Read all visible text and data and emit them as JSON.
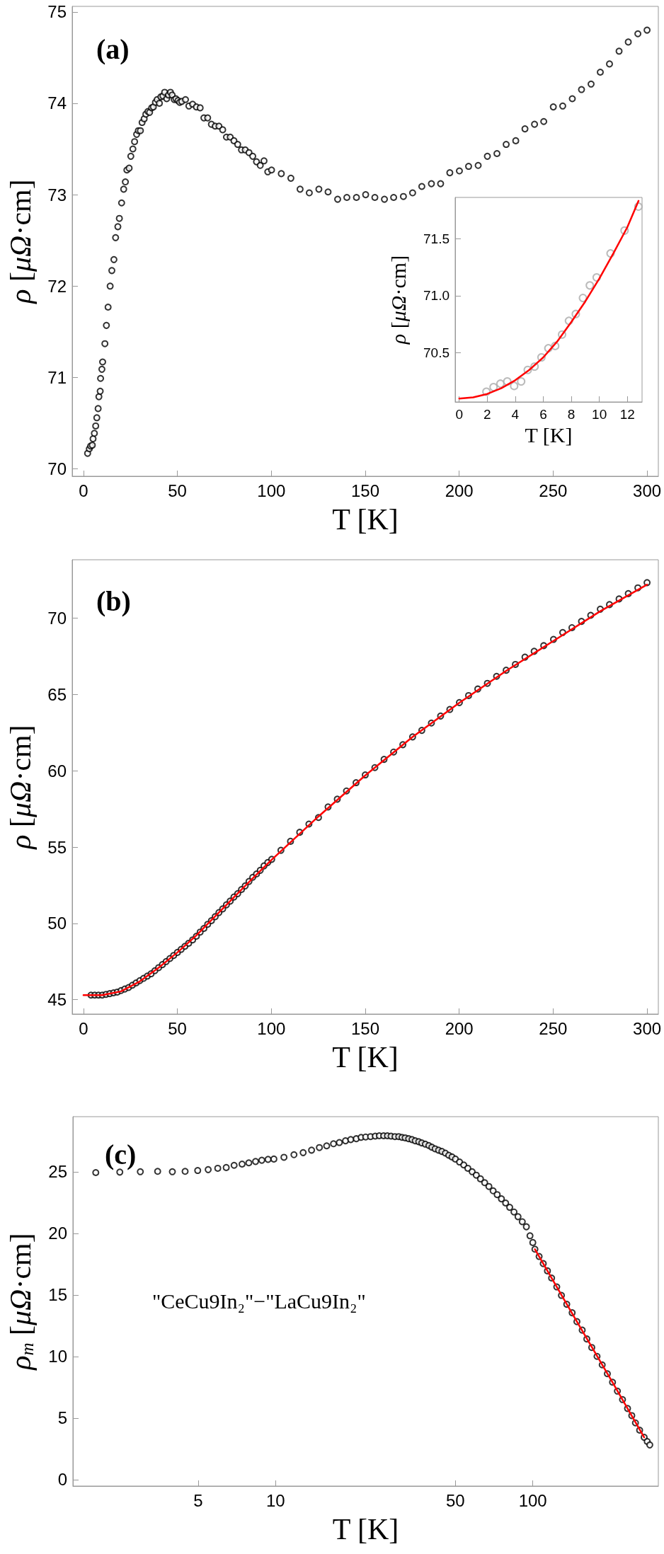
{
  "chart_data": [
    {
      "type": "scatter",
      "title": "(a)",
      "xlabel": "T [K]",
      "ylabel": "ρ [μΩ·cm]",
      "marker": "circle",
      "xlim": [
        -6,
        306
      ],
      "ylim": [
        69.92,
        75.06
      ],
      "xticks": [
        0,
        50,
        100,
        150,
        200,
        250,
        300
      ],
      "yticks": [
        70,
        71,
        72,
        73,
        74,
        75
      ],
      "series": [
        {
          "color": "#000000",
          "x": [
            2.2,
            3.1,
            3.8,
            4.7,
            5.1,
            5.8,
            6.5,
            7.1,
            7.8,
            8.2,
            8.9,
            9.1,
            9.8,
            10.2,
            11.4,
            12.2,
            13.1,
            14.2,
            15.1,
            16.2,
            17.1,
            18.3,
            19.1,
            20.3,
            21.4,
            22.3,
            23.1,
            24.3,
            25.2,
            26.3,
            27.2,
            28.3,
            29.2,
            30.3,
            31.2,
            32.3,
            33.2,
            34.3,
            35.2,
            36.3,
            37.2,
            38.3,
            39.2,
            40.4,
            41.2,
            42.3,
            43.2,
            44.3,
            45.2,
            46.3,
            47.2,
            48.3,
            49.2,
            50.3,
            51.2,
            52.3,
            54.3,
            56.1,
            58.1,
            60.1,
            62.1,
            64.1,
            66.1,
            68.1,
            70.1,
            72.1,
            74.1,
            76.1,
            78.1,
            80.1,
            82.1,
            84.1,
            86.1,
            88.1,
            90.1,
            92.1,
            94.1,
            96.1,
            98.1,
            100.1,
            105.3,
            110.4,
            115.3,
            120.2,
            125.3,
            130.2,
            135.3,
            140.2,
            145.3,
            150.2,
            155.1,
            160.2,
            165.1,
            170.3,
            175.2,
            180.1,
            185.2,
            190.1,
            195.0,
            200.1,
            205.0,
            210.1,
            215.0,
            220.1,
            225.0,
            230.1,
            235.0,
            240.1,
            245.0,
            250.1,
            255.1,
            260.2,
            265.1,
            270.2,
            275.1,
            280.0,
            285.1,
            290.0,
            295.1,
            300.0
          ],
          "values": [
            70.17,
            70.22,
            70.25,
            70.26,
            70.33,
            70.39,
            70.47,
            70.56,
            70.66,
            70.79,
            70.85,
            70.99,
            71.09,
            71.17,
            71.37,
            71.57,
            71.77,
            72.0,
            72.17,
            72.29,
            72.53,
            72.65,
            72.74,
            72.91,
            73.06,
            73.14,
            73.27,
            73.29,
            73.42,
            73.5,
            73.58,
            73.66,
            73.7,
            73.7,
            73.79,
            73.83,
            73.88,
            73.91,
            73.9,
            73.95,
            73.96,
            74.01,
            74.04,
            74.0,
            74.07,
            74.08,
            74.12,
            74.05,
            74.09,
            74.12,
            74.09,
            74.04,
            74.05,
            74.03,
            74.01,
            74.02,
            74.04,
            73.97,
            73.99,
            73.96,
            73.95,
            73.84,
            73.84,
            73.77,
            73.75,
            73.75,
            73.71,
            73.63,
            73.63,
            73.59,
            73.55,
            73.49,
            73.49,
            73.46,
            73.42,
            73.36,
            73.32,
            73.37,
            73.25,
            73.27,
            73.23,
            73.18,
            73.06,
            73.02,
            73.06,
            73.03,
            72.95,
            72.97,
            72.97,
            73.0,
            72.97,
            72.95,
            72.97,
            72.98,
            73.02,
            73.09,
            73.12,
            73.12,
            73.24,
            73.26,
            73.31,
            73.32,
            73.42,
            73.45,
            73.55,
            73.59,
            73.72,
            73.77,
            73.8,
            73.96,
            73.97,
            74.05,
            74.15,
            74.21,
            74.34,
            74.43,
            74.57,
            74.67,
            74.76,
            74.8
          ]
        }
      ]
    },
    {
      "type": "scatter",
      "xlabel": "T [K]",
      "ylabel": "ρ [μΩ·cm]",
      "marker": "circle",
      "xlim": [
        -0.29,
        13.05
      ],
      "ylim": [
        70.07,
        71.86
      ],
      "xticks": [
        0,
        2,
        4,
        6,
        8,
        10,
        12
      ],
      "yticks": [
        {
          "value": 70.5,
          "label": "70.5"
        },
        {
          "value": 71,
          "label": "71.0"
        },
        {
          "value": 71.5,
          "label": "71.5"
        }
      ],
      "series": [
        {
          "color": "#aaaaaa",
          "x": [
            1.94,
            2.45,
            2.94,
            3.43,
            3.92,
            4.42,
            4.89,
            5.38,
            5.87,
            6.36,
            6.85,
            7.34,
            7.83,
            8.32,
            8.83,
            9.32,
            9.81,
            10.8,
            11.8,
            12.79
          ],
          "values": [
            70.16,
            70.2,
            70.23,
            70.25,
            70.21,
            70.25,
            70.35,
            70.38,
            70.46,
            70.54,
            70.56,
            70.66,
            70.78,
            70.84,
            70.98,
            71.09,
            71.16,
            71.37,
            71.57,
            71.78
          ]
        },
        {
          "type": "line",
          "marker": "none",
          "color": "#ff0000",
          "x": [
            0,
            1,
            2,
            3,
            4,
            5,
            6,
            7,
            8,
            9,
            10,
            11,
            12,
            12.8
          ],
          "values": [
            70.1,
            70.11,
            70.14,
            70.19,
            70.26,
            70.35,
            70.46,
            70.6,
            70.77,
            70.95,
            71.15,
            71.37,
            71.6,
            71.83
          ]
        }
      ]
    },
    {
      "type": "scatter",
      "title": "(b)",
      "xlabel": "T [K]",
      "ylabel": "ρ [μΩ·cm]",
      "marker": "circle",
      "xlim": [
        -6,
        306
      ],
      "ylim": [
        44.06,
        73.83
      ],
      "xticks": [
        0,
        50,
        100,
        150,
        200,
        250,
        300
      ],
      "yticks": [
        45,
        50,
        55,
        60,
        65,
        70
      ],
      "series": [
        {
          "color": "#000000",
          "x": [
            4,
            6,
            8,
            10,
            12,
            14,
            16,
            18,
            20,
            22,
            24,
            26,
            28,
            30,
            32,
            34,
            36,
            38,
            40,
            42,
            44,
            46,
            48,
            50,
            52,
            54,
            56,
            58.1,
            60.1,
            62.1,
            64.1,
            66.1,
            68.1,
            70.1,
            72.1,
            74.1,
            76.1,
            78.1,
            80.1,
            82.1,
            84.1,
            86.1,
            88.1,
            90.1,
            92.1,
            94.1,
            96.1,
            98.1,
            100.2,
            105.1,
            110.2,
            115.1,
            120,
            125.1,
            130.2,
            135.1,
            140,
            145.1,
            150,
            155.1,
            160,
            165.1,
            170,
            175.2,
            180.1,
            185.2,
            190.1,
            195,
            200.1,
            205,
            209.9,
            215,
            219.9,
            225,
            229.9,
            235,
            239.9,
            245,
            250.2,
            255.1,
            260,
            265.1,
            270,
            275.1,
            280,
            285.1,
            290,
            295.1,
            300
          ],
          "values": [
            45.3,
            45.3,
            45.3,
            45.3,
            45.35,
            45.4,
            45.45,
            45.5,
            45.6,
            45.7,
            45.8,
            45.95,
            46.1,
            46.25,
            46.4,
            46.55,
            46.7,
            46.9,
            47.1,
            47.3,
            47.5,
            47.7,
            47.9,
            48.1,
            48.3,
            48.5,
            48.7,
            48.92,
            49.16,
            49.43,
            49.67,
            49.94,
            50.18,
            50.44,
            50.71,
            50.95,
            51.22,
            51.46,
            51.73,
            51.95,
            52.22,
            52.46,
            52.75,
            53.02,
            53.24,
            53.48,
            53.77,
            53.99,
            54.2,
            54.79,
            55.38,
            55.97,
            56.51,
            56.94,
            57.63,
            58.14,
            58.68,
            59.22,
            59.73,
            60.21,
            60.75,
            61.23,
            61.71,
            62.22,
            62.65,
            63.13,
            63.59,
            64.02,
            64.47,
            64.93,
            65.36,
            65.73,
            66.19,
            66.59,
            66.97,
            67.45,
            67.83,
            68.2,
            68.61,
            69.06,
            69.38,
            69.79,
            70.19,
            70.59,
            70.89,
            71.26,
            71.61,
            71.99,
            72.33
          ]
        },
        {
          "type": "line",
          "marker": "none",
          "color": "#ff0000",
          "x": [
            0,
            10,
            20,
            30,
            40,
            50,
            60,
            70,
            80,
            90,
            100,
            125,
            150,
            175,
            200,
            225,
            250,
            275,
            300
          ],
          "values": [
            45.3,
            45.3,
            45.55,
            46.2,
            47.1,
            48.1,
            49.2,
            50.45,
            51.7,
            52.95,
            54.15,
            57.0,
            59.7,
            62.2,
            64.45,
            66.55,
            68.5,
            70.45,
            72.2
          ]
        }
      ]
    },
    {
      "type": "scatter",
      "title": "(c)",
      "xlabel": "T [K]",
      "ylabel": "ρ$_{m}$ [μΩ·cm]",
      "marker": "circle",
      "log": "x",
      "annotations": [
        "\"CeCu9In₂\"−\"LaCu9In₂\""
      ],
      "xlim": [
        1.63,
        307.6
      ],
      "ylim": [
        -0.52,
        29.47
      ],
      "xticks": [
        5,
        10,
        50,
        100
      ],
      "yticks": [
        0,
        5,
        10,
        15,
        20,
        25
      ],
      "series": [
        {
          "color": "#000000",
          "x": [
            2.0,
            2.48,
            2.98,
            3.48,
            3.97,
            4.45,
            4.98,
            5.47,
            5.96,
            6.43,
            6.9,
            7.41,
            7.87,
            8.36,
            8.84,
            9.35,
            9.85,
            10.78,
            11.79,
            12.8,
            13.8,
            14.8,
            15.8,
            16.8,
            17.7,
            18.7,
            19.6,
            20.6,
            21.5,
            22.4,
            23.4,
            24.4,
            25.3,
            26.3,
            27.2,
            28.1,
            29.1,
            30.1,
            31.0,
            31.9,
            32.9,
            33.9,
            34.9,
            36.0,
            37.0,
            38.2,
            39.4,
            40.5,
            41.7,
            43.0,
            44.3,
            45.7,
            47.1,
            48.5,
            50.0,
            51.9,
            53.9,
            55.9,
            58.1,
            60.3,
            62.6,
            65.0,
            67.5,
            70.1,
            72.7,
            75.5,
            78.4,
            81.3,
            84.5,
            87.6,
            91.0,
            94.4,
            97.5,
            100.0,
            101.9,
            105.8,
            109.8,
            114.0,
            118.3,
            123.9,
            129.2,
            135.5,
            142.2,
            148.4,
            155.6,
            162.2,
            169.5,
            177.7,
            186.1,
            194.9,
            204.1,
            213.2,
            223.2,
            233.5,
            242.5,
            250.6,
            260.2,
            270.9,
            278.5,
            284.9
          ],
          "values": [
            24.93,
            24.97,
            25.0,
            25.03,
            25.0,
            25.03,
            25.1,
            25.17,
            25.28,
            25.34,
            25.52,
            25.62,
            25.72,
            25.83,
            25.93,
            26.0,
            26.03,
            26.17,
            26.38,
            26.55,
            26.75,
            26.96,
            27.1,
            27.27,
            27.37,
            27.51,
            27.61,
            27.68,
            27.79,
            27.82,
            27.85,
            27.89,
            27.92,
            27.92,
            27.92,
            27.89,
            27.85,
            27.85,
            27.79,
            27.75,
            27.68,
            27.61,
            27.51,
            27.44,
            27.34,
            27.24,
            27.13,
            26.99,
            26.86,
            26.75,
            26.65,
            26.51,
            26.34,
            26.2,
            26.03,
            25.79,
            25.55,
            25.28,
            25.0,
            24.72,
            24.42,
            24.11,
            23.8,
            23.45,
            23.14,
            22.8,
            22.46,
            22.11,
            21.73,
            21.35,
            20.94,
            20.53,
            19.8,
            19.25,
            18.71,
            18.12,
            17.54,
            16.95,
            16.37,
            15.65,
            14.96,
            14.24,
            13.55,
            12.83,
            12.14,
            11.42,
            10.73,
            10.01,
            9.32,
            8.6,
            7.91,
            7.19,
            6.5,
            5.78,
            5.2,
            4.61,
            4.02,
            3.44,
            3.1,
            2.82
          ]
        },
        {
          "type": "line",
          "marker": "none",
          "color": "#ff0000",
          "x": [
            101.9,
            148.4,
            204.1,
            270.9
          ],
          "values": [
            18.71,
            12.83,
            7.91,
            3.44
          ]
        }
      ]
    }
  ]
}
